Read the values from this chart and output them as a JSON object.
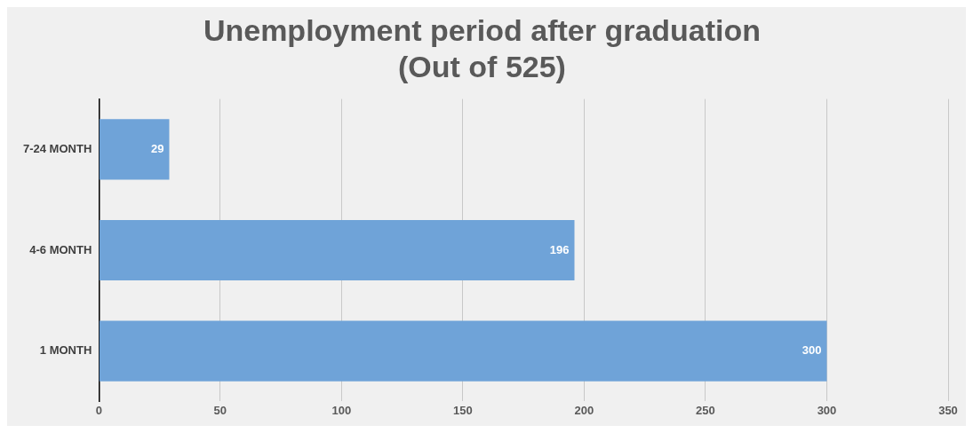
{
  "chart_data": {
    "type": "bar",
    "orientation": "horizontal",
    "title": "Unemployment period after graduation\n(Out of 525)",
    "categories": [
      "7-24 MONTH",
      "4-6 MONTH",
      "1 MONTH"
    ],
    "values": [
      29,
      196,
      300
    ],
    "color": "#6fa3d8",
    "xlim": [
      0,
      350
    ],
    "xticks": [
      0,
      50,
      100,
      150,
      200,
      250,
      300,
      350
    ],
    "grid": "x",
    "data_labels": true,
    "legend": false
  }
}
